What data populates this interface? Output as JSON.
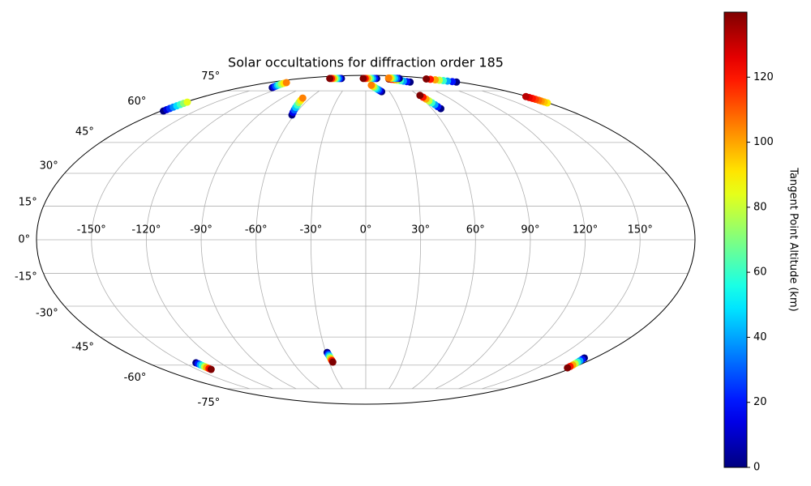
{
  "chart_data": {
    "type": "scatter",
    "projection": "mollweide",
    "title": "Solar occultations for diffraction order 185",
    "colorbar_label": "Tangent Point Altitude (km)",
    "colormap": "jet",
    "clim": [
      0,
      140
    ],
    "cticks": [
      0,
      20,
      40,
      60,
      80,
      100,
      120
    ],
    "grid": true,
    "xticks": [
      {
        "value": -150,
        "label": "-150°"
      },
      {
        "value": -120,
        "label": "-120°"
      },
      {
        "value": -90,
        "label": "-90°"
      },
      {
        "value": -60,
        "label": "-60°"
      },
      {
        "value": -30,
        "label": "-30°"
      },
      {
        "value": 0,
        "label": "0°"
      },
      {
        "value": 30,
        "label": "30°"
      },
      {
        "value": 60,
        "label": "60°"
      },
      {
        "value": 90,
        "label": "90°"
      },
      {
        "value": 120,
        "label": "120°"
      },
      {
        "value": 150,
        "label": "150°"
      }
    ],
    "yticks": [
      {
        "value": -75,
        "label": "-75°"
      },
      {
        "value": -60,
        "label": "-60°"
      },
      {
        "value": -45,
        "label": "-45°"
      },
      {
        "value": -30,
        "label": "-30°"
      },
      {
        "value": -15,
        "label": "-15°"
      },
      {
        "value": 0,
        "label": "0°"
      },
      {
        "value": 15,
        "label": "15°"
      },
      {
        "value": 30,
        "label": "30°"
      },
      {
        "value": 45,
        "label": "45°"
      },
      {
        "value": 60,
        "label": "60°"
      },
      {
        "value": 75,
        "label": "75°"
      }
    ],
    "series": [
      {
        "x": [
          -135,
          -136.9,
          -138.7,
          -140.6,
          -142.4,
          -144.3,
          -146.1,
          -148
        ],
        "y": [
          77.4,
          78.0,
          78.6,
          79.2,
          79.7,
          80.3,
          80.9,
          81.5
        ],
        "values": [
          0,
          15,
          30,
          45,
          60,
          75,
          90,
          105
        ]
      },
      {
        "x": [
          -178.0,
          -178.1,
          -178.1,
          -178.2,
          -178.3,
          -178.4,
          -178.4,
          -178.5
        ],
        "y": [
          62,
          62.8,
          63.5,
          64.3,
          65.1,
          65.9,
          66.6,
          67.4
        ],
        "values": [
          0,
          12,
          24,
          36,
          48,
          60,
          72,
          84
        ]
      },
      {
        "x": [
          -62,
          -62.9,
          -63.7,
          -64.6,
          -65.4,
          -66.3,
          -67.1,
          -68
        ],
        "y": [
          59.7,
          61.2,
          62.6,
          64.1,
          65.6,
          67.1,
          68.5,
          70
        ],
        "values": [
          0,
          15,
          30,
          45,
          60,
          75,
          90,
          105
        ]
      },
      {
        "x": [
          -69,
          -73.7,
          -78.4,
          -83.1,
          -87.9,
          -92.6,
          -97.3,
          -102
        ],
        "y": [
          85.5,
          85.5,
          85.5,
          85.5,
          85.5,
          85.5,
          85.5,
          85.5
        ],
        "values": [
          0,
          20,
          40,
          60,
          80,
          100,
          120,
          140
        ]
      },
      {
        "x": [
          31,
          25.6,
          20.1,
          14.7,
          9.3,
          3.9,
          -1.6,
          -7
        ],
        "y": [
          85.5,
          85.5,
          85.5,
          85.5,
          85.5,
          85.5,
          85.5,
          85.5
        ],
        "values": [
          0,
          20,
          40,
          60,
          80,
          100,
          120,
          140
        ]
      },
      {
        "x": [
          20,
          18.4,
          16.9,
          15.3,
          13.7,
          12.1,
          10.6,
          9
        ],
        "y": [
          74.4,
          75.1,
          75.8,
          76.5,
          77.2,
          77.9,
          78.6,
          79.3
        ],
        "values": [
          0,
          15,
          30,
          45,
          60,
          75,
          90,
          105
        ]
      },
      {
        "x": [
          86,
          82.4,
          78.9,
          75.3,
          71.7,
          68.1,
          64.6,
          61
        ],
        "y": [
          82,
          82.4,
          82.9,
          83.3,
          83.7,
          84.1,
          84.6,
          85
        ],
        "values": [
          0,
          20,
          40,
          60,
          80,
          100,
          120,
          140
        ]
      },
      {
        "x": [
          95,
          91.4,
          87.9,
          84.3,
          80.7,
          77.1,
          73.6,
          70
        ],
        "y": [
          85.5,
          85.6,
          85.6,
          85.7,
          85.8,
          85.9,
          85.9,
          86
        ],
        "values": [
          0,
          15,
          30,
          45,
          60,
          75,
          90,
          105
        ]
      },
      {
        "x": [
          176,
          173.7,
          171.4,
          169.1,
          166.9,
          164.6,
          162.3,
          160
        ],
        "y": [
          82,
          82.4,
          82.9,
          83.3,
          83.7,
          84.1,
          84.6,
          85
        ],
        "values": [
          0,
          20,
          40,
          60,
          80,
          100,
          120,
          140
        ]
      },
      {
        "x": [
          68,
          67.1,
          66.3,
          65.4,
          64.6,
          63.7,
          62.9,
          62
        ],
        "y": [
          63.4,
          64.6,
          65.8,
          67,
          68.2,
          69.4,
          70.6,
          71.8
        ],
        "values": [
          0,
          20,
          40,
          60,
          80,
          100,
          120,
          140
        ]
      },
      {
        "x": [
          179.2,
          179.0,
          178.9,
          178.8,
          178.7,
          178.6,
          178.4,
          178.3
        ],
        "y": [
          66.9,
          67.5,
          68.1,
          68.6,
          69.2,
          69.8,
          70.4,
          71
        ],
        "values": [
          90,
          96,
          102,
          108,
          114,
          120,
          126,
          132
        ]
      },
      {
        "x": [
          -140,
          -139.6,
          -139.3,
          -138.9,
          -138.6,
          -138.2,
          -137.9,
          -137.5
        ],
        "y": [
          -58.7,
          -59.2,
          -59.8,
          -60.3,
          -60.9,
          -61.4,
          -62,
          -62.5
        ],
        "values": [
          0,
          20,
          40,
          60,
          80,
          100,
          120,
          140
        ]
      },
      {
        "x": [
          -29,
          -28.7,
          -28.4,
          -28.1,
          -27.9,
          -27.6,
          -27.3,
          -27
        ],
        "y": [
          -53,
          -53.8,
          -54.5,
          -55.3,
          -56,
          -56.8,
          -57.5,
          -58.3
        ],
        "values": [
          0,
          20,
          40,
          60,
          80,
          100,
          120,
          140
        ]
      },
      {
        "x": [
          172,
          172.6,
          173.1,
          173.7,
          174.3,
          174.9,
          175.4,
          176
        ],
        "y": [
          -56,
          -56.8,
          -57.6,
          -58.4,
          -59.2,
          -60,
          -60.8,
          -61.6
        ],
        "values": [
          0,
          20,
          40,
          60,
          80,
          100,
          120,
          140
        ]
      }
    ]
  }
}
